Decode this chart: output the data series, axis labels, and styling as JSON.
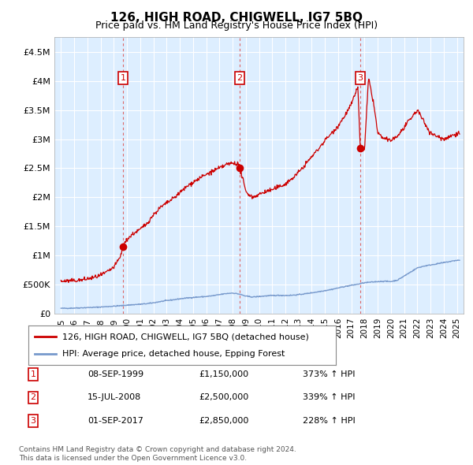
{
  "title": "126, HIGH ROAD, CHIGWELL, IG7 5BQ",
  "subtitle": "Price paid vs. HM Land Registry's House Price Index (HPI)",
  "plot_bg_color": "#ddeeff",
  "red_line_color": "#cc0000",
  "blue_line_color": "#7799cc",
  "vline_color": "#dd6666",
  "ylim": [
    0,
    4750000
  ],
  "yticks": [
    0,
    500000,
    1000000,
    1500000,
    2000000,
    2500000,
    3000000,
    3500000,
    4000000,
    4500000
  ],
  "ytick_labels": [
    "£0",
    "£500K",
    "£1M",
    "£1.5M",
    "£2M",
    "£2.5M",
    "£3M",
    "£3.5M",
    "£4M",
    "£4.5M"
  ],
  "transactions": [
    {
      "num": 1,
      "date_str": "08-SEP-1999",
      "year": 1999.69,
      "price": 1150000,
      "label": "373% ↑ HPI"
    },
    {
      "num": 2,
      "date_str": "15-JUL-2008",
      "year": 2008.54,
      "price": 2500000,
      "label": "339% ↑ HPI"
    },
    {
      "num": 3,
      "date_str": "01-SEP-2017",
      "year": 2017.67,
      "price": 2850000,
      "label": "228% ↑ HPI"
    }
  ],
  "legend_entries": [
    "126, HIGH ROAD, CHIGWELL, IG7 5BQ (detached house)",
    "HPI: Average price, detached house, Epping Forest"
  ],
  "footer_line1": "Contains HM Land Registry data © Crown copyright and database right 2024.",
  "footer_line2": "This data is licensed under the Open Government Licence v3.0.",
  "hpi_years": [
    1995.0,
    1995.5,
    1996.0,
    1996.5,
    1997.0,
    1997.5,
    1998.0,
    1998.5,
    1999.0,
    1999.5,
    2000.0,
    2000.5,
    2001.0,
    2001.5,
    2002.0,
    2002.5,
    2003.0,
    2003.5,
    2004.0,
    2004.5,
    2005.0,
    2005.5,
    2006.0,
    2006.5,
    2007.0,
    2007.5,
    2008.0,
    2008.5,
    2009.0,
    2009.5,
    2010.0,
    2010.5,
    2011.0,
    2011.5,
    2012.0,
    2012.5,
    2013.0,
    2013.5,
    2014.0,
    2014.5,
    2015.0,
    2015.5,
    2016.0,
    2016.5,
    2017.0,
    2017.5,
    2018.0,
    2018.5,
    2019.0,
    2019.5,
    2020.0,
    2020.5,
    2021.0,
    2021.5,
    2022.0,
    2022.5,
    2023.0,
    2023.5,
    2024.0,
    2024.5,
    2025.0
  ],
  "hpi_values": [
    95000,
    97000,
    100000,
    104000,
    108000,
    112000,
    118000,
    125000,
    132000,
    140000,
    150000,
    158000,
    165000,
    175000,
    190000,
    210000,
    228000,
    242000,
    258000,
    272000,
    282000,
    290000,
    298000,
    312000,
    330000,
    348000,
    358000,
    340000,
    305000,
    290000,
    298000,
    308000,
    315000,
    318000,
    316000,
    320000,
    330000,
    345000,
    362000,
    380000,
    400000,
    420000,
    445000,
    470000,
    490000,
    510000,
    535000,
    545000,
    555000,
    560000,
    555000,
    580000,
    650000,
    720000,
    790000,
    820000,
    840000,
    860000,
    880000,
    900000,
    920000
  ],
  "red_years": [
    1995.0,
    1995.5,
    1996.0,
    1996.5,
    1997.0,
    1997.5,
    1998.0,
    1998.5,
    1999.0,
    1999.5,
    1999.69,
    2000.0,
    2000.5,
    2001.0,
    2001.5,
    2002.0,
    2002.5,
    2003.0,
    2003.5,
    2004.0,
    2004.5,
    2005.0,
    2005.5,
    2006.0,
    2006.5,
    2007.0,
    2007.5,
    2008.0,
    2008.4,
    2008.54,
    2008.7,
    2009.0,
    2009.5,
    2010.0,
    2010.5,
    2011.0,
    2011.5,
    2012.0,
    2012.5,
    2013.0,
    2013.5,
    2014.0,
    2014.5,
    2015.0,
    2015.5,
    2016.0,
    2016.5,
    2017.0,
    2017.5,
    2017.67,
    2018.0,
    2018.3,
    2018.7,
    2019.0,
    2019.5,
    2020.0,
    2020.5,
    2021.0,
    2021.5,
    2022.0,
    2022.5,
    2023.0,
    2023.5,
    2024.0,
    2024.5,
    2025.0
  ],
  "red_values": [
    560000,
    565000,
    570000,
    580000,
    600000,
    625000,
    660000,
    720000,
    800000,
    980000,
    1150000,
    1280000,
    1380000,
    1450000,
    1550000,
    1700000,
    1820000,
    1900000,
    1980000,
    2080000,
    2180000,
    2260000,
    2330000,
    2390000,
    2450000,
    2500000,
    2560000,
    2590000,
    2580000,
    2500000,
    2380000,
    2100000,
    2000000,
    2050000,
    2100000,
    2130000,
    2180000,
    2230000,
    2320000,
    2430000,
    2560000,
    2700000,
    2830000,
    2980000,
    3100000,
    3230000,
    3400000,
    3600000,
    3900000,
    2850000,
    2820000,
    4050000,
    3600000,
    3100000,
    3000000,
    2980000,
    3050000,
    3200000,
    3350000,
    3500000,
    3300000,
    3100000,
    3050000,
    3000000,
    3050000,
    3100000
  ]
}
